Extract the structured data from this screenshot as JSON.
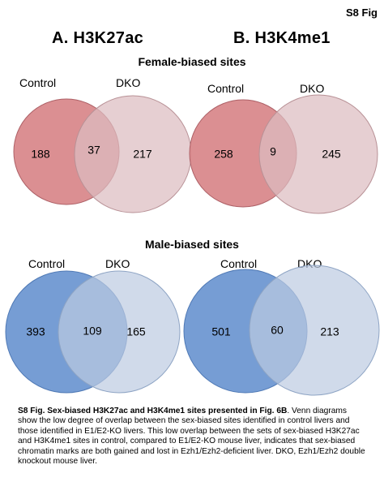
{
  "fig_tag": "S8 Fig",
  "panels": {
    "a_title": "A. H3K27ac",
    "b_title": "B. H3K4me1"
  },
  "female": {
    "title": "Female-biased sites",
    "a": {
      "left_label": "Control",
      "right_label": "DKO",
      "left_only": "188",
      "overlap": "37",
      "right_only": "217"
    },
    "b": {
      "left_label": "Control",
      "right_label": "DKO",
      "left_only": "258",
      "overlap": "9",
      "right_only": "245"
    }
  },
  "male": {
    "title": "Male-biased sites",
    "a": {
      "left_label": "Control",
      "right_label": "DKO",
      "left_only": "393",
      "overlap": "109",
      "right_only": "165"
    },
    "b": {
      "left_label": "Control",
      "right_label": "DKO",
      "left_only": "501",
      "overlap": "60",
      "right_only": "213"
    }
  },
  "colors": {
    "female_left": "#d9898c",
    "female_right": "#dcbcc0",
    "male_left": "#6f98d2",
    "male_right": "#bccbe1"
  },
  "caption": {
    "bold": "S8 Fig. Sex-biased H3K27ac and H3K4me1 sites presented in Fig. 6B",
    "text": ". Venn diagrams show the low degree of overlap between the sex-biased sites identified in control livers and those identified in E1/E2-KO livers. This low overlap between the sets of sex-biased H3K27ac and H3K4me1 sites in control, compared to E1/E2-KO mouse liver, indicates that sex-biased chromatin marks are both gained and lost in Ezh1/Ezh2-deficient liver. DKO, Ezh1/Ezh2 double knockout mouse liver."
  }
}
